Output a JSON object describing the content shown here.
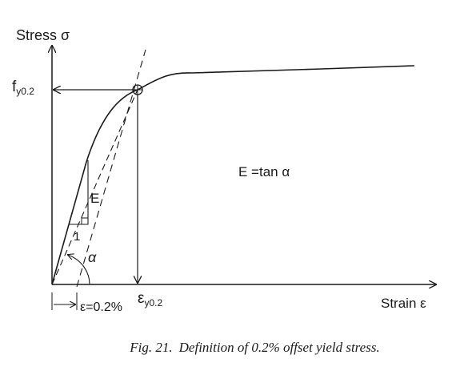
{
  "diagram": {
    "y_axis_label": "Stress σ",
    "x_axis_label": "Strain ε",
    "yield_stress_label": {
      "main": "f",
      "sub": "y0.2"
    },
    "yield_strain_label": {
      "main": "ε",
      "sub": "y0.2"
    },
    "offset_label": "ε=0.2%",
    "modulus_formula": "E =tan α",
    "slope_rise_label": "E",
    "slope_run_label": "1",
    "angle_label": "α"
  },
  "caption": {
    "number": "Fig. 21.",
    "text": "Definition of 0.2% offset yield stress."
  },
  "colors": {
    "ink": "#1a1a1a",
    "background": "#ffffff"
  }
}
